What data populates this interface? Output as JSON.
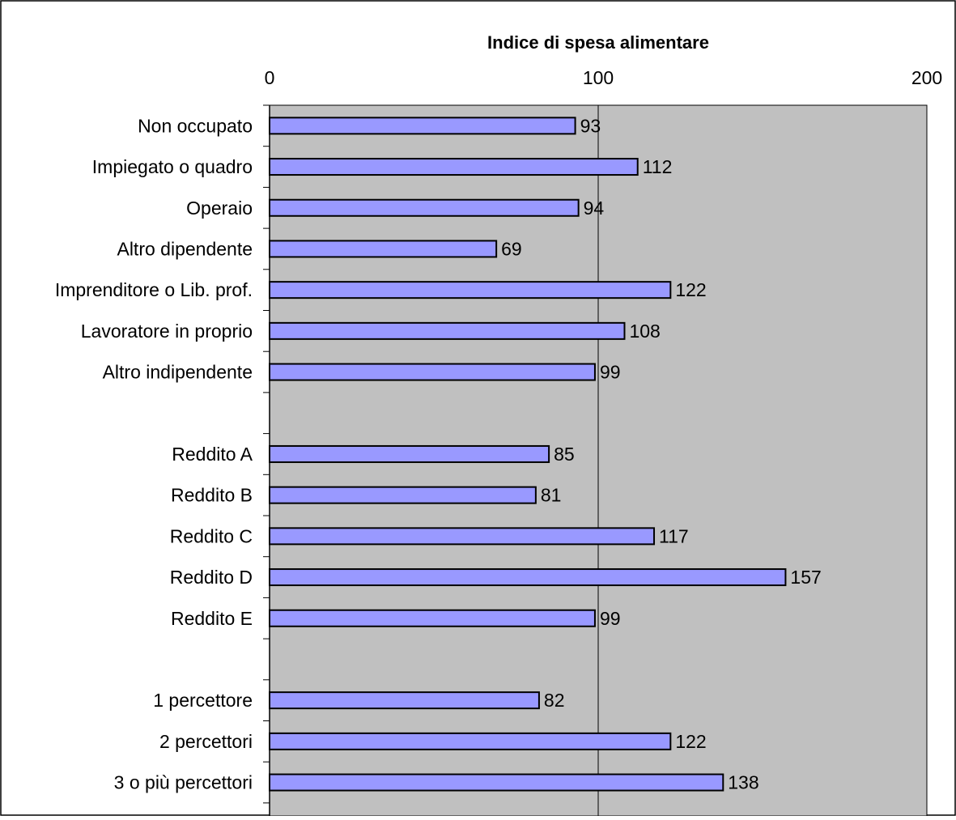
{
  "chart_data": {
    "type": "bar",
    "orientation": "horizontal",
    "title": "Indice di spesa alimentare",
    "x_axis_position": "top",
    "xlim": [
      0,
      200
    ],
    "x_ticks": [
      0,
      100,
      200
    ],
    "grid": "vertical lines at major ticks",
    "legend": "none",
    "data_labels": true,
    "categories": [
      "Non occupato",
      "Impiegato o quadro",
      "Operaio",
      "Altro dipendente",
      "Imprenditore o Lib. prof.",
      "Lavoratore in proprio",
      "Altro indipendente",
      "",
      "Reddito A",
      "Reddito B",
      "Reddito C",
      "Reddito D",
      "Reddito E",
      "",
      "1 percettore",
      "2 percettori",
      "3 o più  percettori"
    ],
    "values": [
      93,
      112,
      94,
      69,
      122,
      108,
      99,
      null,
      85,
      81,
      117,
      157,
      99,
      null,
      82,
      122,
      138
    ],
    "colors": {
      "bar_fill": "#9999FF",
      "bar_stroke": "#000000",
      "plot_background": "#C0C0C0",
      "gridline": "#000000"
    }
  }
}
